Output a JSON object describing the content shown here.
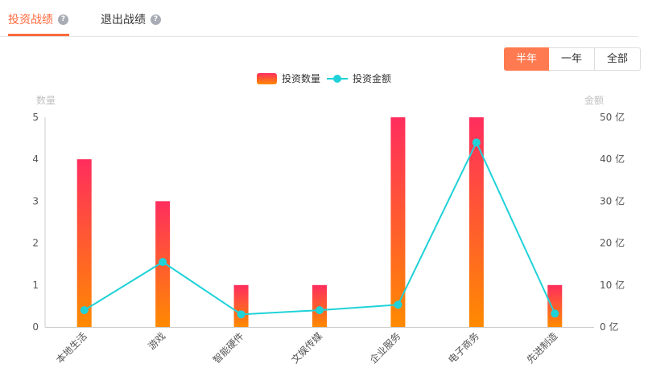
{
  "tabs": [
    {
      "label": "投资战绩",
      "active": true
    },
    {
      "label": "退出战绩",
      "active": false
    }
  ],
  "help_glyph": "?",
  "periods": [
    {
      "label": "半年",
      "active": true
    },
    {
      "label": "一年",
      "active": false
    },
    {
      "label": "全部",
      "active": false
    }
  ],
  "colors": {
    "accent": "#ff6a3d",
    "bar_top": "#ff2d5e",
    "bar_bottom": "#ff8a00",
    "line": "#1fd2d8"
  },
  "chart_data": {
    "type": "bar+line",
    "categories": [
      "本地生活",
      "游戏",
      "智能硬件",
      "文娱传媒",
      "企业服务",
      "电子商务",
      "先进制造"
    ],
    "series": [
      {
        "name": "投资数量",
        "type": "bar",
        "axis": "left",
        "values": [
          4,
          3,
          1,
          1,
          5,
          5,
          1
        ]
      },
      {
        "name": "投资金额",
        "type": "line",
        "axis": "right",
        "values": [
          4,
          15.5,
          3,
          4,
          5.3,
          44,
          3.2
        ]
      }
    ],
    "ylabel": "数量",
    "ylabel_right": "金额",
    "ylim": [
      0,
      5
    ],
    "ylim_right": [
      0,
      50
    ],
    "yticks": [
      "0",
      "1",
      "2",
      "3",
      "4",
      "5"
    ],
    "yticks_right": [
      "0 亿",
      "10 亿",
      "20 亿",
      "30 亿",
      "40 亿",
      "50 亿"
    ],
    "legend_position": "top-center",
    "grid": false
  }
}
